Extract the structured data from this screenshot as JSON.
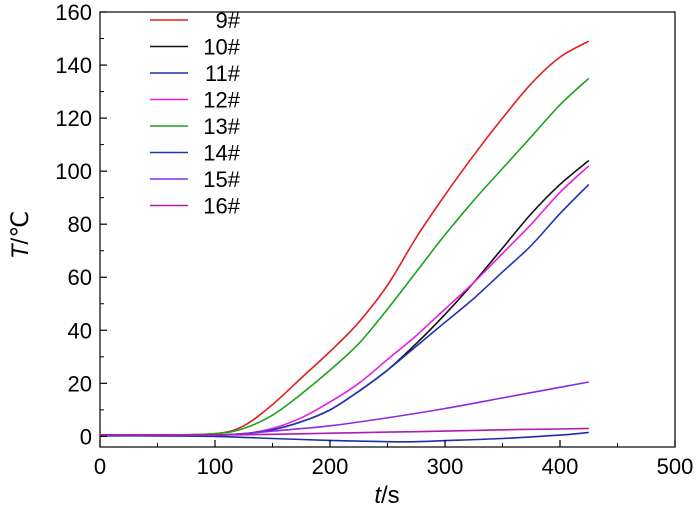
{
  "chart_data": {
    "type": "line",
    "title": "",
    "xlabel_italic": "t",
    "xlabel_unit": "/s",
    "ylabel_italic": "T",
    "ylabel_unit": "/℃",
    "xlim": [
      0,
      500
    ],
    "ylim": [
      -4,
      160
    ],
    "xticks": [
      0,
      100,
      200,
      300,
      400,
      500
    ],
    "yticks": [
      0,
      20,
      40,
      60,
      80,
      100,
      120,
      140,
      160
    ],
    "grid": false,
    "legend_position": "top-left",
    "series": [
      {
        "name": "9#",
        "color": "#e0201c",
        "x": [
          0,
          50,
          100,
          125,
          150,
          175,
          200,
          225,
          250,
          275,
          300,
          325,
          350,
          375,
          400,
          425
        ],
        "y": [
          0.5,
          0.5,
          1,
          4,
          12,
          22,
          32,
          43,
          57,
          75,
          91,
          106,
          120,
          133,
          143,
          149
        ]
      },
      {
        "name": "10#",
        "color": "#111111",
        "x": [
          0,
          50,
          100,
          125,
          150,
          175,
          200,
          225,
          250,
          275,
          300,
          325,
          350,
          375,
          400,
          425
        ],
        "y": [
          0.5,
          0.5,
          0.5,
          1,
          2.5,
          5.5,
          10,
          17,
          25,
          35,
          46,
          58,
          71,
          84,
          95,
          104
        ]
      },
      {
        "name": "11#",
        "color": "#1c2fa8",
        "x": [
          0,
          50,
          100,
          150,
          200,
          250,
          275,
          300,
          350,
          400,
          425
        ],
        "y": [
          0.2,
          0.2,
          0,
          -0.8,
          -1.5,
          -2,
          -2,
          -1.6,
          -0.8,
          0.5,
          1.5
        ]
      },
      {
        "name": "12#",
        "color": "#e81ee0",
        "x": [
          0,
          50,
          100,
          125,
          150,
          175,
          200,
          225,
          250,
          275,
          300,
          325,
          350,
          375,
          400,
          425
        ],
        "y": [
          0.5,
          0.5,
          0.5,
          1,
          3,
          7,
          13,
          20,
          29,
          38,
          48,
          58,
          69,
          80,
          92,
          102
        ]
      },
      {
        "name": "13#",
        "color": "#1da21d",
        "x": [
          0,
          50,
          100,
          125,
          150,
          175,
          200,
          225,
          250,
          275,
          300,
          325,
          350,
          375,
          400,
          425
        ],
        "y": [
          0.5,
          0.5,
          1,
          3,
          8,
          16,
          25,
          35,
          48,
          62,
          76,
          89,
          101,
          113,
          125,
          135
        ]
      },
      {
        "name": "14#",
        "color": "#2233b8",
        "x": [
          0,
          50,
          100,
          125,
          150,
          175,
          200,
          225,
          250,
          275,
          300,
          325,
          350,
          375,
          400,
          425
        ],
        "y": [
          0.5,
          0.5,
          0.5,
          1,
          2.5,
          5.5,
          10,
          17,
          25,
          34,
          43,
          52,
          62,
          72,
          84,
          95
        ]
      },
      {
        "name": "15#",
        "color": "#8a2be2",
        "x": [
          0,
          50,
          100,
          125,
          150,
          200,
          250,
          300,
          350,
          400,
          425
        ],
        "y": [
          0.5,
          0.5,
          0.5,
          1,
          2,
          4,
          7,
          10.5,
          14.5,
          18.5,
          20.5
        ]
      },
      {
        "name": "16#",
        "color": "#b01cb0",
        "x": [
          0,
          50,
          100,
          150,
          200,
          250,
          300,
          350,
          400,
          425
        ],
        "y": [
          0.5,
          0.5,
          0.5,
          0.8,
          1.2,
          1.6,
          2,
          2.5,
          2.8,
          3
        ]
      }
    ]
  }
}
